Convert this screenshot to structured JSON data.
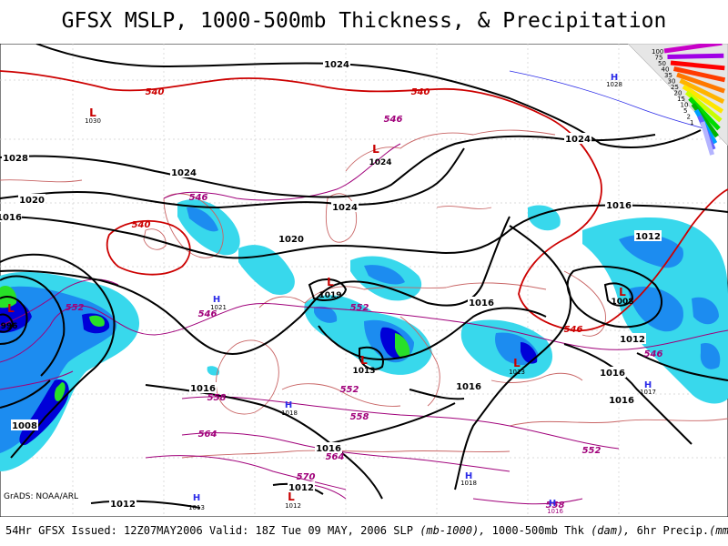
{
  "title": "GFSX MSLP, 1000-500mb Thickness, & Precipitation",
  "footer": {
    "issued": "54Hr GFSX Issued: 12Z07MAY2006 Valid: 18Z Tue 09 MAY, 2006",
    "slp": "SLP",
    "slp_units": "(mb-1000),",
    "thk": "1000-500mb Thk",
    "thk_units": "(dam),",
    "precip": "6hr Precip.",
    "precip_units": "(mm)"
  },
  "credit": "GrADS: NOAA/ARL",
  "colors": {
    "isobar": "#000000",
    "thickness_cold": "#cc0000",
    "thickness_warm": "#a0007a",
    "precip_light": "#38d8ec",
    "precip_mod": "#1c8cf0",
    "precip_heavy": "#0000d8",
    "precip_vheavy": "#28e028",
    "coast": "#c86464",
    "high_marker": "#2c2ce8",
    "low_marker": "#c80000"
  },
  "legend": {
    "top_label": "100",
    "colors": [
      "#c800c8",
      "#a000e6",
      "#ff0000",
      "#ff3c00",
      "#ff7800",
      "#ffb400",
      "#ffe600",
      "#c8ff00",
      "#00dc00",
      "#00b400",
      "#00a0ff",
      "#6464ff",
      "#b4b4ff"
    ],
    "labels": [
      "100",
      "75",
      "50",
      "40",
      "35",
      "30",
      "25",
      "20",
      "15",
      "10",
      "5",
      "2",
      "1"
    ]
  },
  "isobar_labels": [
    "1024",
    "1028",
    "1024",
    "1020",
    "1016",
    "1024",
    "1020",
    "1016",
    "1024",
    "1016",
    "1012",
    "1012",
    "1016",
    "1016",
    "1008",
    "1016",
    "1016",
    "1012",
    "1012",
    "1016"
  ],
  "thickness_labels": [
    "540",
    "540",
    "546",
    "546",
    "540",
    "552",
    "546",
    "552",
    "546",
    "546",
    "558",
    "552",
    "564",
    "558",
    "564",
    "552",
    "570",
    "558"
  ],
  "pressure_centers": [
    {
      "type": "L",
      "value": "1030"
    },
    {
      "type": "L",
      "value": "1024"
    },
    {
      "type": "H",
      "value": "1028"
    },
    {
      "type": "L",
      "value": "996"
    },
    {
      "type": "H",
      "value": "1021"
    },
    {
      "type": "L",
      "value": "1019"
    },
    {
      "type": "L",
      "value": "1013"
    },
    {
      "type": "L",
      "value": "1013"
    },
    {
      "type": "L",
      "value": "1008"
    },
    {
      "type": "H",
      "value": "1017"
    },
    {
      "type": "H",
      "value": "1018"
    },
    {
      "type": "H",
      "value": "1018"
    },
    {
      "type": "H",
      "value": "1013"
    },
    {
      "type": "L",
      "value": "1012"
    },
    {
      "type": "H",
      "value": "1016"
    },
    {
      "type": "H",
      "value": "1016"
    }
  ]
}
